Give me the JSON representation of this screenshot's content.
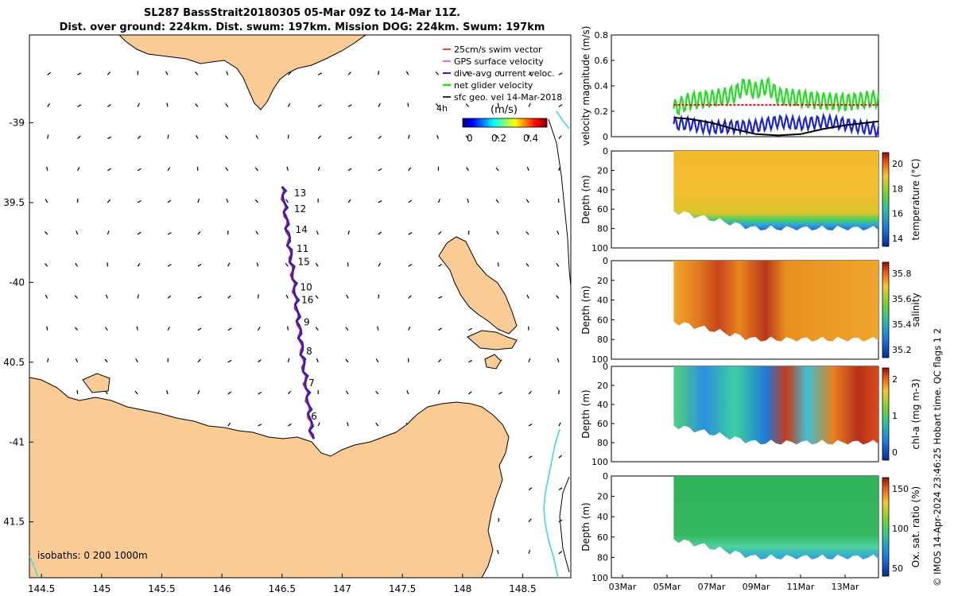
{
  "header": {
    "title_line1": "SL287 BassStrait20180305 05-Mar 09Z to 14-Mar 11Z.",
    "title_line2": "Dist. over ground: 224km. Dist. swum: 197km. Mission DOG: 224km. Swum: 197km"
  },
  "credit": "© IMOS 14-Apr-2024 23:46:25 Hobart time. QC flags 1  2",
  "colors": {
    "land": "#fbcb96",
    "isobath_200": "#3fd9e6",
    "track_red": "#e3191b",
    "track_blue": "#1a23d6",
    "gps_magenta": "#e040e0",
    "net_green": "#22dd22"
  },
  "map": {
    "lon_ticks": [
      "144.5",
      "145",
      "145.5",
      "146",
      "146.5",
      "147",
      "147.5",
      "148",
      "148.5"
    ],
    "lat_ticks": [
      "-39",
      "39.5",
      "-40",
      "40.5",
      "-41",
      "41.5"
    ],
    "lon_range": [
      144.4,
      148.9
    ],
    "lat_range": [
      -41.85,
      -38.45
    ],
    "legend": {
      "items": [
        "25cm/s swim vector",
        "GPS surface velocity",
        "dive-avg current veloc.",
        "net glider velocity",
        "sfc geo. vel 14-Mar-2018"
      ],
      "note": "4h",
      "colorbar_label": "(m/s)",
      "colorbar_ticks": [
        "0",
        "0.2",
        "0.4"
      ]
    },
    "isobath_label": "isobaths: 0   200  1000m",
    "day_labels": [
      {
        "t": "13",
        "lon": 146.6,
        "lat": -39.46
      },
      {
        "t": "12",
        "lon": 146.6,
        "lat": -39.56
      },
      {
        "t": "14",
        "lon": 146.61,
        "lat": -39.69
      },
      {
        "t": "11",
        "lon": 146.62,
        "lat": -39.81
      },
      {
        "t": "15",
        "lon": 146.63,
        "lat": -39.89
      },
      {
        "t": "10",
        "lon": 146.65,
        "lat": -40.05
      },
      {
        "t": "16",
        "lon": 146.66,
        "lat": -40.13
      },
      {
        "t": "9",
        "lon": 146.68,
        "lat": -40.27
      },
      {
        "t": "8",
        "lon": 146.7,
        "lat": -40.45
      },
      {
        "t": "7",
        "lon": 146.72,
        "lat": -40.65
      },
      {
        "t": "6",
        "lon": 146.74,
        "lat": -40.86
      }
    ]
  },
  "chart_data": [
    {
      "type": "line",
      "panel": "velocity",
      "ylabel": "velocity magnitude (m/s)",
      "ylim": [
        0,
        0.8
      ],
      "yticks": [
        "0",
        "0.2",
        "0.4",
        "0.6",
        "0.8"
      ],
      "series": [
        {
          "name": "net glider velocity",
          "color": "#22dd22",
          "x": [
            5.3,
            6,
            7,
            8,
            8.5,
            9,
            9.5,
            10,
            11,
            12,
            13,
            14.5
          ],
          "y": [
            0.22,
            0.28,
            0.3,
            0.33,
            0.4,
            0.36,
            0.4,
            0.32,
            0.3,
            0.28,
            0.27,
            0.3
          ]
        },
        {
          "name": "dive-avg current veloc.",
          "color": "#1a23d6",
          "x": [
            5.3,
            6,
            7,
            8,
            9,
            10,
            11,
            12,
            13,
            14.5
          ],
          "y": [
            0.1,
            0.1,
            0.07,
            0.08,
            0.08,
            0.12,
            0.1,
            0.12,
            0.1,
            0.05
          ]
        },
        {
          "name": "sfc geo. vel",
          "color": "#000000",
          "x": [
            5.3,
            6,
            7,
            8,
            9,
            10,
            11,
            12,
            13,
            14.5
          ],
          "y": [
            0.15,
            0.14,
            0.11,
            0.06,
            0.02,
            0.01,
            0.02,
            0.06,
            0.09,
            0.12
          ]
        },
        {
          "name": "25cm/s swim vector",
          "color": "#e3191b",
          "x": [
            5.3,
            14.5
          ],
          "y": [
            0.25,
            0.25
          ]
        }
      ]
    },
    {
      "type": "heatmap",
      "panel": "temperature",
      "ylabel": "Depth (m)",
      "ylim": [
        100,
        0
      ],
      "yticks": [
        "0",
        "20",
        "40",
        "60",
        "80",
        "100"
      ],
      "colorbar_label": "temperature (°C)",
      "colorbar_ticks": [
        "14",
        "16",
        "18",
        "20"
      ],
      "bottom_depth_m": [
        62,
        70,
        78,
        80,
        78,
        76,
        80,
        78,
        80
      ]
    },
    {
      "type": "heatmap",
      "panel": "salinity",
      "ylabel": "Depth (m)",
      "ylim": [
        100,
        0
      ],
      "yticks": [
        "0",
        "20",
        "40",
        "60",
        "80",
        "100"
      ],
      "colorbar_label": "salinity",
      "colorbar_ticks": [
        "35.2",
        "35.4",
        "35.6",
        "35.8"
      ]
    },
    {
      "type": "heatmap",
      "panel": "chl-a",
      "ylabel": "Depth (m)",
      "ylim": [
        100,
        0
      ],
      "yticks": [
        "0",
        "20",
        "40",
        "60",
        "80",
        "100"
      ],
      "colorbar_label": "chl-a (mg m-3)",
      "colorbar_ticks": [
        "0",
        "1",
        "2"
      ]
    },
    {
      "type": "heatmap",
      "panel": "oxygen",
      "ylabel": "Depth (m)",
      "ylim": [
        100,
        0
      ],
      "yticks": [
        "0",
        "20",
        "40",
        "60",
        "80",
        "100"
      ],
      "colorbar_label": "Ox. sat. ratio (%)",
      "colorbar_ticks": [
        "50",
        "100",
        "150"
      ]
    }
  ],
  "time_axis": {
    "ticks": [
      "03Mar",
      "05Mar",
      "07Mar",
      "09Mar",
      "11Mar",
      "13Mar"
    ],
    "range_days": [
      2.5,
      14.5
    ]
  }
}
